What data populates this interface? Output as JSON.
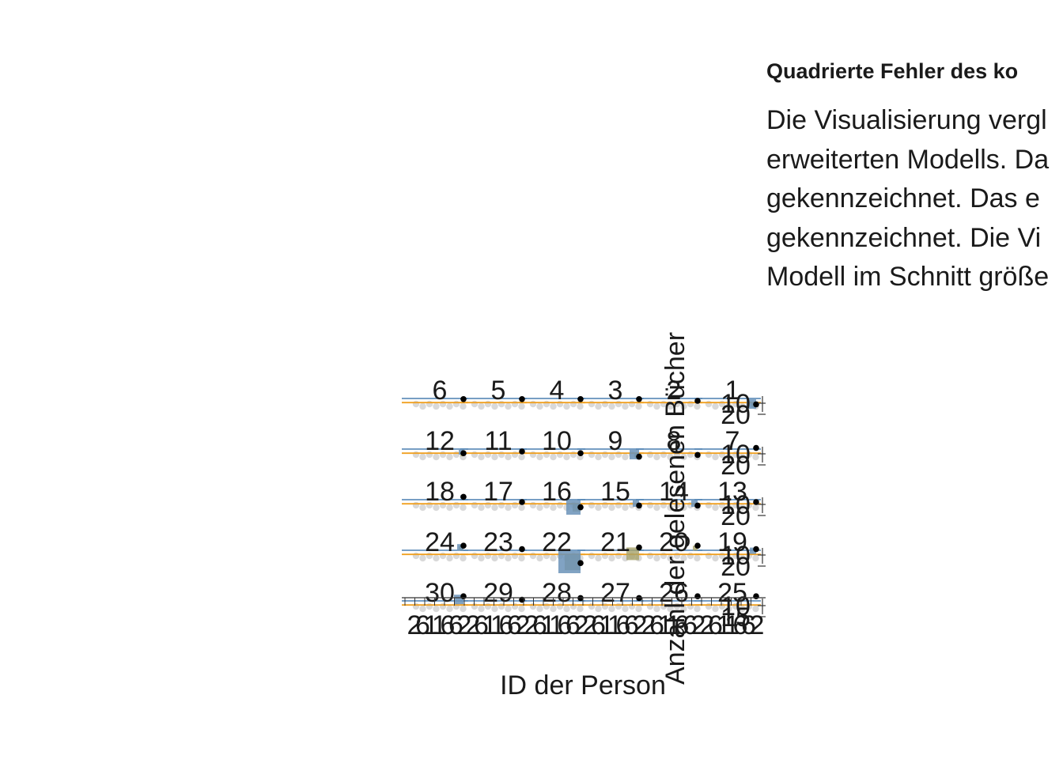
{
  "text_panel": {
    "title": "Quadrierte Fehler des ko",
    "description_lines": [
      "Die Visualisierung vergl",
      "erweiterten Modells. Da",
      "gekennzeichnet. Das e",
      "gekennzeichnet. Die Vi",
      "Modell im Schnitt größe"
    ]
  },
  "colors": {
    "model_a_line": "#4a7fb0",
    "model_b_line": "#f0a020",
    "model_a_square": "#6b93b8",
    "model_b_square": "#a8a26a",
    "points": "#000000",
    "background_points": "#d9d9d9",
    "axis": "#333333",
    "text": "#1a1a1a"
  },
  "chart_data": {
    "type": "scatter",
    "title": "",
    "xlabel": "ID der Person",
    "ylabel": "Anzahl der gelesenen Bücher",
    "facet_layout": "5 rows x 6 columns, numbered right-to-left",
    "panels": [
      {
        "id": "1",
        "value": 14,
        "model_a_sq": 6,
        "model_b_sq": 3
      },
      {
        "id": "2",
        "value": 10,
        "model_a_sq": 0,
        "model_b_sq": 0
      },
      {
        "id": "3",
        "value": 8,
        "model_a_sq": 0,
        "model_b_sq": 0
      },
      {
        "id": "4",
        "value": 8,
        "model_a_sq": 0,
        "model_b_sq": 0
      },
      {
        "id": "5",
        "value": 8,
        "model_a_sq": 0,
        "model_b_sq": 0
      },
      {
        "id": "6",
        "value": 8,
        "model_a_sq": 0,
        "model_b_sq": 0
      },
      {
        "id": "7",
        "value": 6,
        "model_a_sq": 0,
        "model_b_sq": 0
      },
      {
        "id": "8",
        "value": 14,
        "model_a_sq": 0,
        "model_b_sq": 0
      },
      {
        "id": "9",
        "value": 16,
        "model_a_sq": 6,
        "model_b_sq": 3
      },
      {
        "id": "10",
        "value": 12,
        "model_a_sq": 0,
        "model_b_sq": 0
      },
      {
        "id": "11",
        "value": 10,
        "model_a_sq": 0,
        "model_b_sq": 0
      },
      {
        "id": "12",
        "value": 12,
        "model_a_sq": 3,
        "model_b_sq": 2
      },
      {
        "id": "13",
        "value": 10,
        "model_a_sq": 0,
        "model_b_sq": 0
      },
      {
        "id": "14",
        "value": 14,
        "model_a_sq": 4,
        "model_b_sq": 0
      },
      {
        "id": "15",
        "value": 14,
        "model_a_sq": 4,
        "model_b_sq": 0
      },
      {
        "id": "16",
        "value": 16,
        "model_a_sq": 9,
        "model_b_sq": 5
      },
      {
        "id": "17",
        "value": 10,
        "model_a_sq": 0,
        "model_b_sq": 0
      },
      {
        "id": "18",
        "value": 4,
        "model_a_sq": 2,
        "model_b_sq": 0
      },
      {
        "id": "19",
        "value": 6,
        "model_a_sq": 4,
        "model_b_sq": 0
      },
      {
        "id": "20",
        "value": 2,
        "model_a_sq": 0,
        "model_b_sq": 3
      },
      {
        "id": "21",
        "value": 4,
        "model_a_sq": 0,
        "model_b_sq": 8
      },
      {
        "id": "22",
        "value": 22,
        "model_a_sq": 14,
        "model_b_sq": 10
      },
      {
        "id": "23",
        "value": 6,
        "model_a_sq": 0,
        "model_b_sq": 0
      },
      {
        "id": "24",
        "value": 2,
        "model_a_sq": 4,
        "model_b_sq": 3
      },
      {
        "id": "25",
        "value": 2,
        "model_a_sq": 0,
        "model_b_sq": 0
      },
      {
        "id": "26",
        "value": 2,
        "model_a_sq": 0,
        "model_b_sq": 0
      },
      {
        "id": "27",
        "value": 4,
        "model_a_sq": 0,
        "model_b_sq": 0
      },
      {
        "id": "28",
        "value": 4,
        "model_a_sq": 0,
        "model_b_sq": 0
      },
      {
        "id": "29",
        "value": 6,
        "model_a_sq": 0,
        "model_b_sq": 0
      },
      {
        "id": "30",
        "value": 2,
        "model_a_sq": 6,
        "model_b_sq": 0
      }
    ],
    "model_a_level": 10,
    "model_b_level": 12,
    "y_tick_labels": [
      "10",
      "20"
    ],
    "bottom_row_y_tick_labels": [
      "10",
      "15"
    ],
    "x_tick_labels": [
      "2",
      "6",
      "1",
      "1",
      "6",
      "6",
      "2"
    ],
    "ylim": [
      0,
      24
    ],
    "grid": false,
    "legend": "none"
  }
}
